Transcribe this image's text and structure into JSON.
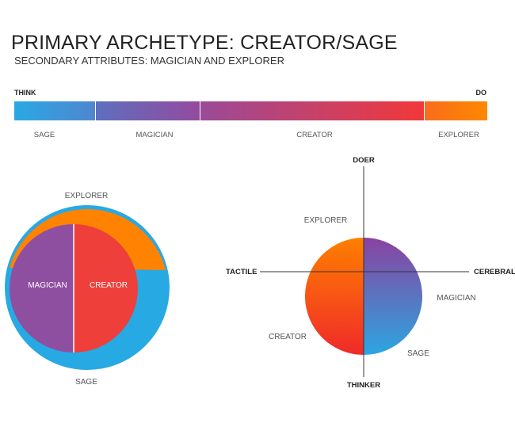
{
  "header": {
    "title": "PRIMARY ARCHETYPE: CREATOR/SAGE",
    "subtitle": "SECONDARY ATTRIBUTES: MAGICIAN AND EXPLORER"
  },
  "spectrum": {
    "left_label": "THINK",
    "right_label": "DO",
    "segments": [
      {
        "label": "SAGE",
        "color_start": "#2aa8e4",
        "color_end": "#4f86cf"
      },
      {
        "label": "MAGICIAN",
        "color_start": "#5e6fbf",
        "color_end": "#944a9d"
      },
      {
        "label": "CREATOR",
        "color_start": "#9a4a98",
        "color_end": "#f2383a"
      },
      {
        "label": "EXPLORER",
        "color_start": "#f96c1c",
        "color_end": "#ff8800"
      }
    ]
  },
  "ring_diagram": {
    "outer_top_label": "EXPLORER",
    "outer_bottom_label": "SAGE",
    "inner_left_label": "MAGICIAN",
    "inner_right_label": "CREATOR",
    "colors": {
      "explorer": "#ff8300",
      "sage": "#27a9e3",
      "magician": "#8e4fa1",
      "creator": "#ee3f3a"
    }
  },
  "quadrant_diagram": {
    "axis_top": "DOER",
    "axis_bottom": "THINKER",
    "axis_left": "TACTILE",
    "axis_right": "CEREBRAL",
    "labels": {
      "explorer": "EXPLORER",
      "magician": "MAGICIAN",
      "creator": "CREATOR",
      "sage": "SAGE"
    },
    "colors": {
      "orange": "#ff7f00",
      "red": "#ef2a2a",
      "purple": "#8a42a0",
      "blue": "#2ba6e0"
    }
  }
}
